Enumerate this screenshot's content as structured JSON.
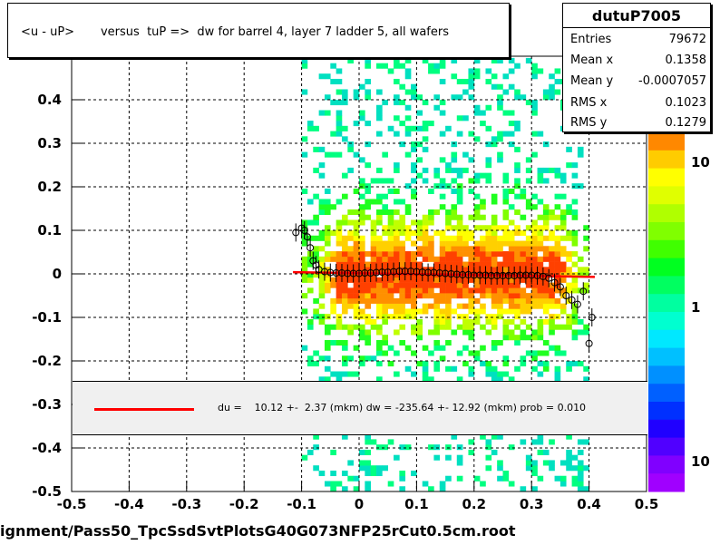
{
  "chart_data": {
    "type": "scatter",
    "title": "<u - uP>       versus  tuP =>  dw for barrel 4, layer 7 ladder 5, all wafers",
    "xlim": [
      -0.5,
      0.5
    ],
    "ylim": [
      -0.5,
      0.5
    ],
    "x_ticks": [
      "-0.5",
      "-0.4",
      "-0.3",
      "-0.2",
      "-0.1",
      "0",
      "0.1",
      "0.2",
      "0.3",
      "0.4",
      "0.5"
    ],
    "y_ticks": [
      "-0.5",
      "-0.4",
      "-0.3",
      "-0.2",
      "-0.1",
      "0",
      "0.1",
      "0.2",
      "0.3",
      "0.4"
    ],
    "z_ticks": [
      "10",
      "1",
      "10"
    ],
    "grid": true,
    "heatmap_x_range": [
      -0.1,
      0.4
    ],
    "stats": {
      "name": "dutuP7005",
      "entries_label": "Entries",
      "entries": "79672",
      "meanx_label": "Mean x",
      "meanx": "0.1358",
      "meany_label": "Mean y",
      "meany": "-0.0007057",
      "rmsx_label": "RMS x",
      "rmsx": "0.1023",
      "rmsy_label": "RMS y",
      "rmsy": "0.1279"
    },
    "profile_points": {
      "x": [
        -0.11,
        -0.1,
        -0.095,
        -0.09,
        -0.085,
        -0.08,
        -0.075,
        -0.07,
        -0.06,
        -0.05,
        -0.04,
        -0.03,
        -0.02,
        -0.01,
        0.0,
        0.01,
        0.02,
        0.03,
        0.04,
        0.05,
        0.06,
        0.07,
        0.08,
        0.09,
        0.1,
        0.11,
        0.12,
        0.13,
        0.14,
        0.15,
        0.16,
        0.17,
        0.18,
        0.19,
        0.2,
        0.21,
        0.22,
        0.23,
        0.24,
        0.25,
        0.26,
        0.27,
        0.28,
        0.29,
        0.3,
        0.31,
        0.32,
        0.33,
        0.34,
        0.35,
        0.36,
        0.37,
        0.38,
        0.39,
        0.4,
        0.405
      ],
      "y": [
        0.095,
        0.105,
        0.1,
        0.085,
        0.06,
        0.03,
        0.02,
        0.01,
        0.005,
        0.003,
        0.002,
        0.002,
        0.001,
        0.001,
        0.001,
        0.002,
        0.002,
        0.003,
        0.004,
        0.004,
        0.005,
        0.006,
        0.006,
        0.006,
        0.005,
        0.004,
        0.003,
        0.003,
        0.002,
        0.001,
        0.0,
        -0.001,
        -0.002,
        -0.002,
        -0.003,
        -0.003,
        -0.003,
        -0.004,
        -0.004,
        -0.004,
        -0.004,
        -0.004,
        -0.003,
        -0.003,
        -0.003,
        -0.004,
        -0.006,
        -0.01,
        -0.02,
        -0.03,
        -0.05,
        -0.06,
        -0.07,
        -0.04,
        -0.16,
        -0.1
      ]
    },
    "fit_line": {
      "x": [
        -0.115,
        0.41
      ],
      "y": [
        0.004,
        -0.007
      ],
      "color": "#ff0000"
    },
    "legend_text": "du =    10.12 +-  2.37 (mkm) dw = -235.64 +- 12.92 (mkm) prob = 0.010",
    "footer": "ignment/Pass50_TpcSsdSvtPlotsG40G073NFP25rCut0.5cm.root"
  }
}
